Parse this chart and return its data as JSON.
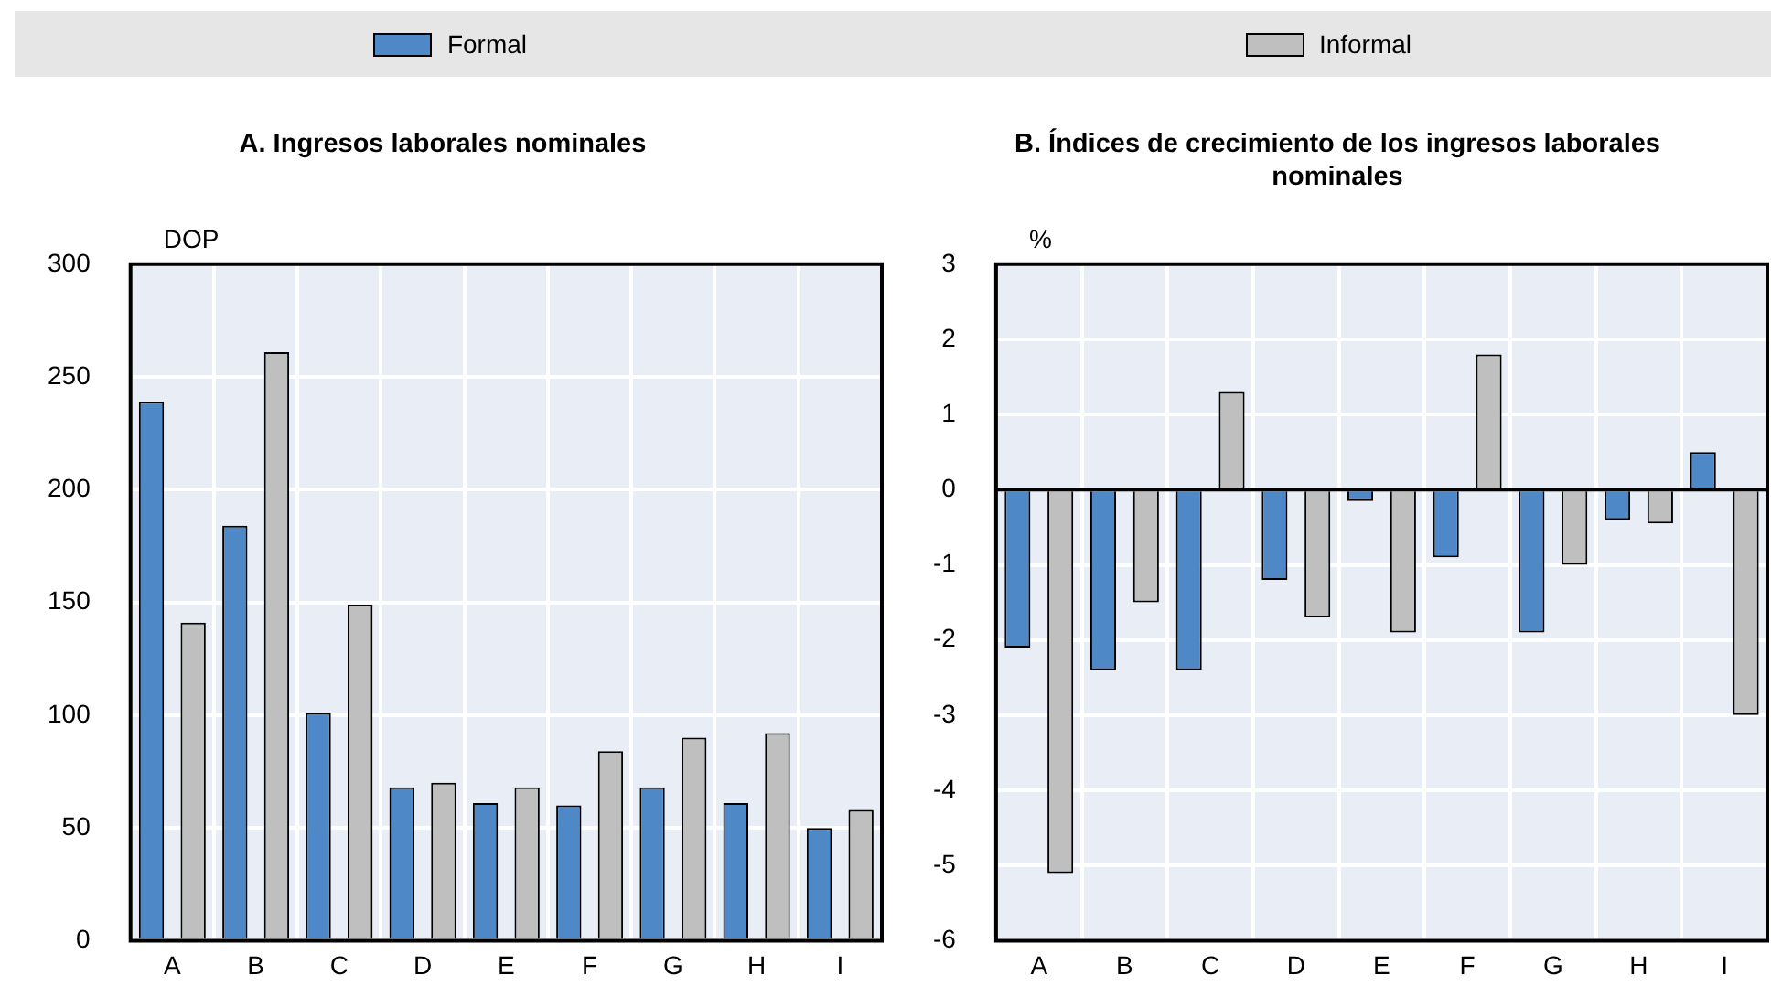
{
  "chart_data": [
    {
      "type": "bar",
      "title": "A. Ingresos laborales nominales",
      "ylabel": "DOP",
      "categories": [
        "A",
        "B",
        "C",
        "D",
        "E",
        "F",
        "G",
        "H",
        "I"
      ],
      "series": [
        {
          "name": "Formal",
          "color": "#4e88c7",
          "values": [
            239,
            184,
            101,
            68,
            61,
            60,
            68,
            61,
            50
          ]
        },
        {
          "name": "Informal",
          "color": "#bfbfbf",
          "values": [
            141,
            261,
            149,
            70,
            68,
            84,
            90,
            92,
            58
          ]
        }
      ],
      "ylim": [
        0,
        300
      ],
      "yticks": [
        0,
        50,
        100,
        150,
        200,
        250,
        300
      ],
      "grid": true,
      "legend": "top"
    },
    {
      "type": "bar",
      "title": "B. Índices de crecimiento de los ingresos laborales nominales",
      "ylabel": "%",
      "categories": [
        "A",
        "B",
        "C",
        "D",
        "E",
        "F",
        "G",
        "H",
        "I"
      ],
      "series": [
        {
          "color": "#4e88c7",
          "values": [
            -2.1,
            -2.4,
            -2.4,
            -1.2,
            -0.15,
            -0.9,
            -1.9,
            -0.4,
            0.5
          ]
        },
        {
          "color": "#bfbfbf",
          "values": [
            -5.1,
            -1.5,
            1.3,
            -1.7,
            -1.9,
            1.8,
            -1.0,
            -0.45,
            -3.0
          ]
        }
      ],
      "ylim": [
        -6,
        3
      ],
      "yticks": [
        -6,
        -5,
        -4,
        -3,
        -2,
        -1,
        0,
        1,
        2,
        3
      ],
      "grid": true
    }
  ]
}
